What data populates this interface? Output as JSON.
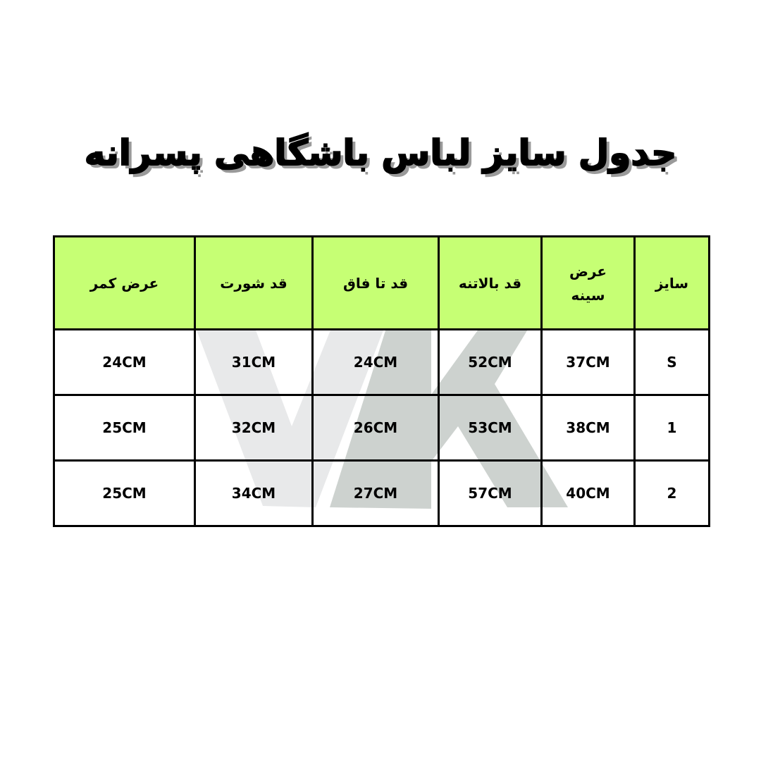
{
  "title": "جدول سایز لباس باشگاهی پسرانه",
  "watermark": "VK",
  "colors": {
    "header_bg": "#c6ff74",
    "border": "#000000",
    "watermark_light": "#e8e9ea",
    "watermark_dark": "#cdd2cf"
  },
  "table": {
    "headers": [
      "سایز",
      "عرض سینه",
      "قد بالاتنه",
      "قد تا فاق",
      "قد شورت",
      "عرض کمر"
    ],
    "rows": [
      [
        "S",
        "37CM",
        "52CM",
        "24CM",
        "31CM",
        "24CM"
      ],
      [
        "1",
        "38CM",
        "53CM",
        "26CM",
        "32CM",
        "25CM"
      ],
      [
        "2",
        "40CM",
        "57CM",
        "27CM",
        "34CM",
        "25CM"
      ]
    ]
  }
}
